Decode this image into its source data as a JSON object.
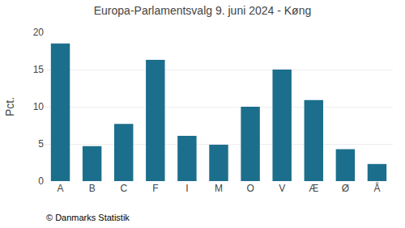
{
  "chart_data": {
    "type": "bar",
    "title": "Europa-Parlamentsvalg 9. juni 2024 - Køng",
    "categories": [
      "A",
      "B",
      "C",
      "F",
      "I",
      "M",
      "O",
      "V",
      "Æ",
      "Ø",
      "Å"
    ],
    "values": [
      18.5,
      4.7,
      7.7,
      16.3,
      6.1,
      4.9,
      10.0,
      15.0,
      10.9,
      4.3,
      2.3
    ],
    "color": "#1c6f8c",
    "ylabel": "Pct.",
    "footnote": "© Danmarks Statistik",
    "ylim": [
      0,
      20
    ],
    "yticks": [
      0,
      5,
      10,
      15,
      20
    ],
    "grid": true
  }
}
